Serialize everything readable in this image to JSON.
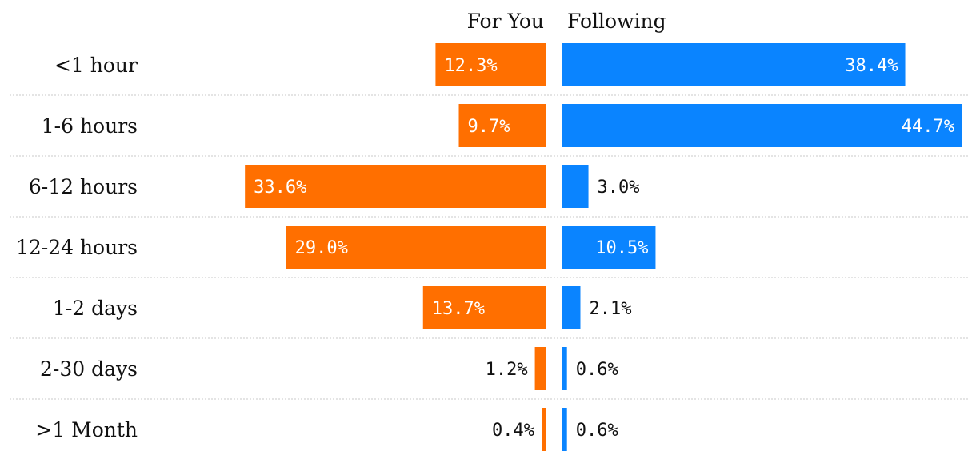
{
  "chart_data": {
    "type": "bar",
    "orientation": "horizontal-diverging",
    "categories": [
      "<1 hour",
      "1-6 hours",
      "6-12 hours",
      "12-24 hours",
      "1-2 days",
      "2-30 days",
      ">1 Month"
    ],
    "series": [
      {
        "name": "For You",
        "color": "#ff6f00",
        "values": [
          12.3,
          9.7,
          33.6,
          29.0,
          13.7,
          1.2,
          0.4
        ],
        "labels": [
          "12.3%",
          "9.7%",
          "33.6%",
          "29.0%",
          "13.7%",
          "1.2%",
          "0.4%"
        ]
      },
      {
        "name": "Following",
        "color": "#0a84ff",
        "values": [
          38.4,
          44.7,
          3.0,
          10.5,
          2.1,
          0.6,
          0.6
        ],
        "labels": [
          "38.4%",
          "44.7%",
          "3.0%",
          "10.5%",
          "2.1%",
          "0.6%",
          "0.6%"
        ]
      }
    ],
    "title": "",
    "xlabel": "",
    "ylabel": "",
    "grid": false,
    "row_separators": "dotted",
    "legend": "column headers above bars"
  }
}
